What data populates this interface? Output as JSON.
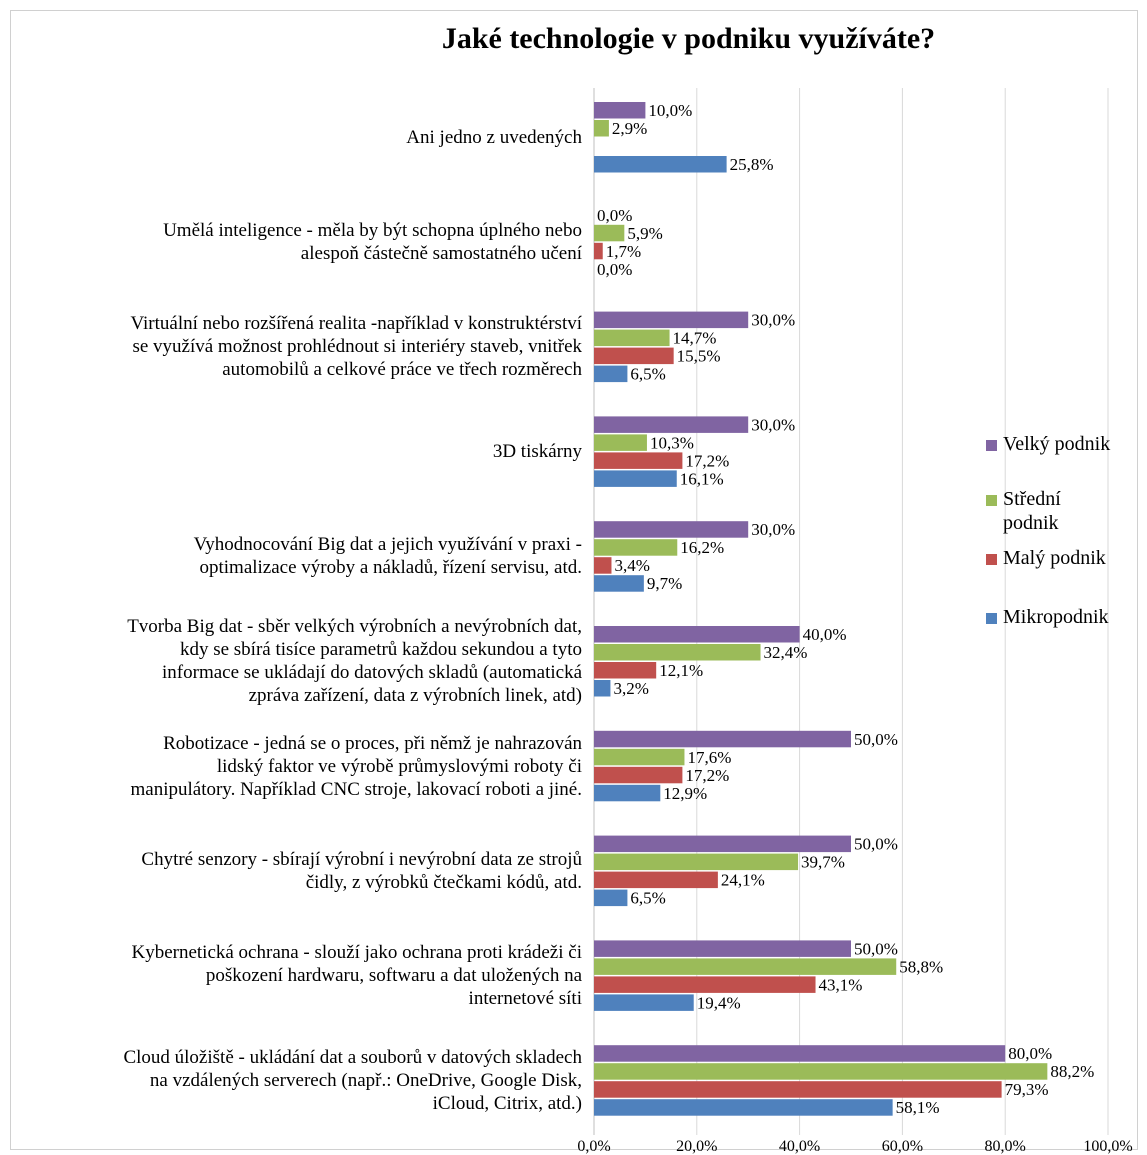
{
  "chart_data": {
    "type": "bar",
    "orientation": "horizontal",
    "title": "Jaké technologie v podniku využíváte?",
    "xlim": [
      0,
      100
    ],
    "x_ticks": [
      "0,0%",
      "20,0%",
      "40,0%",
      "60,0%",
      "80,0%",
      "100,0%"
    ],
    "grid": true,
    "legend_position": "right",
    "categories": [
      "Ani jedno z uvedených",
      "Umělá inteligence - měla by být schopna úplného nebo alespoň částečně samostatného učení",
      "Virtuální nebo rozšířená realita -například v konstruktérství se využívá možnost prohlédnout si interiéry staveb, vnitřek automobilů a celkové práce ve třech rozměrech",
      "3D tiskárny",
      "Vyhodnocování Big dat a jejich využívání v praxi - optimalizace výroby a nákladů, řízení servisu, atd.",
      "Tvorba Big dat - sběr velkých výrobních a nevýrobních dat, kdy se sbírá tisíce parametrů každou sekundou a tyto informace se ukládají do datových skladů (automatická zpráva zařízení, data z výrobních linek, atd)",
      "Robotizace - jedná se o proces, při němž je nahrazován lidský faktor ve výrobě průmyslovými roboty či manipulátory. Například CNC stroje, lakovací roboti a jiné.",
      "Chytré senzory - sbírají výrobní i nevýrobní data ze strojů čidly, z výrobků čtečkami kódů, atd.",
      "Kybernetická ochrana - slouží jako ochrana proti krádeži či poškození hardwaru, softwaru a dat uložených na internetové síti",
      "Cloud úložiště - ukládání dat a souborů v datových skladech na vzdálených serverech (např.: OneDrive, Google Disk, iCloud, Citrix, atd.)"
    ],
    "category_lines": [
      [
        "Ani jedno z uvedených"
      ],
      [
        "Umělá inteligence - měla by být schopna úplného nebo",
        "alespoň částečně samostatného učení"
      ],
      [
        "Virtuální nebo rozšířená realita -například v konstruktérství",
        "se využívá možnost prohlédnout si interiéry staveb, vnitřek",
        "automobilů a celkové práce ve třech rozměrech"
      ],
      [
        "3D tiskárny"
      ],
      [
        "Vyhodnocování Big dat a jejich využívání v praxi -",
        "optimalizace výroby a nákladů, řízení servisu, atd."
      ],
      [
        "Tvorba Big dat - sběr velkých výrobních a nevýrobních dat,",
        "kdy se sbírá tisíce parametrů každou sekundou a tyto",
        "informace se ukládají do datových skladů (automatická",
        "zpráva zařízení, data z výrobních linek, atd)"
      ],
      [
        "Robotizace - jedná se o proces, při němž je nahrazován",
        "lidský faktor ve výrobě průmyslovými roboty či",
        "manipulátory. Například CNC stroje, lakovací roboti a jiné."
      ],
      [
        "Chytré senzory - sbírají výrobní i nevýrobní data ze strojů",
        "čidly, z výrobků čtečkami kódů, atd."
      ],
      [
        "Kybernetická ochrana - slouží jako ochrana proti krádeži či",
        "poškození hardwaru, softwaru a dat uložených na",
        "internetové síti"
      ],
      [
        "Cloud úložiště - ukládání dat a souborů v datových skladech",
        "na vzdálených serverech (např.: OneDrive, Google Disk,",
        "iCloud, Citrix, atd.)"
      ]
    ],
    "series": [
      {
        "name": "Velký podnik",
        "color": "#8064a2",
        "values": [
          10.0,
          0.0,
          30.0,
          30.0,
          30.0,
          40.0,
          50.0,
          50.0,
          50.0,
          80.0
        ],
        "labels": [
          "10,0%",
          "0,0%",
          "30,0%",
          "30,0%",
          "30,0%",
          "40,0%",
          "50,0%",
          "50,0%",
          "50,0%",
          "80,0%"
        ]
      },
      {
        "name": "Střední podnik",
        "color": "#9bbb59",
        "values": [
          2.9,
          5.9,
          14.7,
          10.3,
          16.2,
          32.4,
          17.6,
          39.7,
          58.8,
          88.2
        ],
        "labels": [
          "2,9%",
          "5,9%",
          "14,7%",
          "10,3%",
          "16,2%",
          "32,4%",
          "17,6%",
          "39,7%",
          "58,8%",
          "88,2%"
        ]
      },
      {
        "name": "Malý podnik",
        "color": "#c0504d",
        "values": [
          null,
          1.7,
          15.5,
          17.2,
          3.4,
          12.1,
          17.2,
          24.1,
          43.1,
          79.3
        ],
        "labels": [
          null,
          "1,7%",
          "15,5%",
          "17,2%",
          "3,4%",
          "12,1%",
          "17,2%",
          "24,1%",
          "43,1%",
          "79,3%"
        ]
      },
      {
        "name": "Mikropodnik",
        "color": "#4f81bd",
        "values": [
          25.8,
          0.0,
          6.5,
          16.1,
          9.7,
          3.2,
          12.9,
          6.5,
          19.4,
          58.1
        ],
        "labels": [
          "25,8%",
          "0,0%",
          "6,5%",
          "16,1%",
          "9,7%",
          "3,2%",
          "12,9%",
          "6,5%",
          "19,4%",
          "58,1%"
        ]
      }
    ]
  },
  "legend": {
    "items": [
      {
        "lines": [
          "Velký podnik"
        ],
        "color": "#8064a2"
      },
      {
        "lines": [
          "Střední",
          "podnik"
        ],
        "color": "#9bbb59"
      },
      {
        "lines": [
          "Malý podnik"
        ],
        "color": "#c0504d"
      },
      {
        "lines": [
          "Mikropodnik"
        ],
        "color": "#4f81bd"
      }
    ]
  }
}
